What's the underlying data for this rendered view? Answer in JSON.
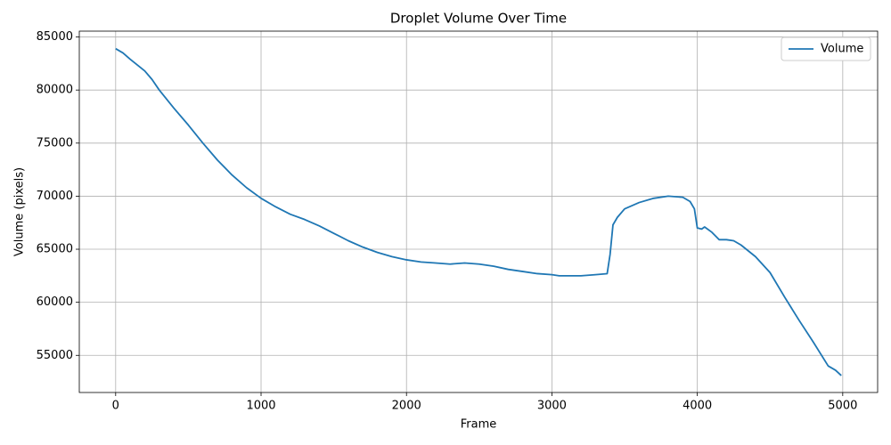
{
  "chart_data": {
    "type": "line",
    "title": "Droplet Volume Over Time",
    "x_label": "Frame",
    "y_label": "Volume (pixels)",
    "x": [
      0,
      50,
      100,
      200,
      250,
      300,
      400,
      500,
      600,
      700,
      800,
      900,
      1000,
      1100,
      1200,
      1300,
      1400,
      1500,
      1600,
      1700,
      1800,
      1900,
      2000,
      2100,
      2200,
      2300,
      2400,
      2500,
      2600,
      2700,
      2800,
      2900,
      3000,
      3050,
      3100,
      3200,
      3300,
      3380,
      3400,
      3420,
      3450,
      3500,
      3600,
      3700,
      3800,
      3900,
      3950,
      3980,
      4000,
      4030,
      4050,
      4100,
      4150,
      4200,
      4250,
      4300,
      4400,
      4500,
      4600,
      4700,
      4800,
      4900,
      4950,
      4990
    ],
    "series": [
      {
        "name": "Volume",
        "color": "#1f77b4",
        "values": [
          83900,
          83500,
          82900,
          81800,
          81000,
          80000,
          78300,
          76700,
          75000,
          73400,
          72000,
          70800,
          69800,
          69000,
          68300,
          67800,
          67200,
          66500,
          65800,
          65200,
          64700,
          64300,
          64000,
          63800,
          63700,
          63600,
          63700,
          63600,
          63400,
          63100,
          62900,
          62700,
          62600,
          62500,
          62500,
          62500,
          62600,
          62700,
          64500,
          67300,
          68000,
          68800,
          69400,
          69800,
          70000,
          69900,
          69500,
          68800,
          67000,
          66900,
          67100,
          66600,
          65900,
          65900,
          65800,
          65400,
          64300,
          62800,
          60500,
          58300,
          56200,
          54000,
          53600,
          53100
        ]
      }
    ],
    "xlim": [
      -250,
      5240
    ],
    "ylim": [
      51500,
      85550
    ],
    "xticks": [
      0,
      1000,
      2000,
      3000,
      4000,
      5000
    ],
    "yticks": [
      55000,
      60000,
      65000,
      70000,
      75000,
      80000,
      85000
    ],
    "grid": true,
    "legend": "upper right"
  }
}
